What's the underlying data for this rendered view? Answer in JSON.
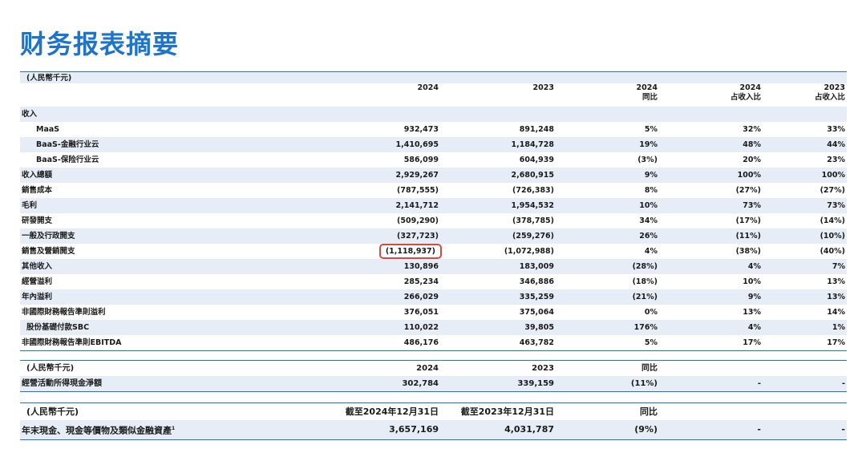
{
  "title": "财务报表摘要",
  "main": {
    "unit": "(人民幣千元)",
    "headers": [
      "",
      "2024",
      "2023",
      "2024",
      "2024",
      "2023"
    ],
    "subheaders": [
      "",
      "",
      "",
      "同比",
      "占收入比",
      "占收入比"
    ],
    "section": "收入",
    "rows": [
      [
        "MaaS",
        "932,473",
        "891,248",
        "5%",
        "32%",
        "33%"
      ],
      [
        "BaaS-金融行业云",
        "1,410,695",
        "1,184,728",
        "19%",
        "48%",
        "44%"
      ],
      [
        "BaaS-保险行业云",
        "586,099",
        "604,939",
        "(3%)",
        "20%",
        "23%"
      ],
      [
        "收入總額",
        "2,929,267",
        "2,680,915",
        "9%",
        "100%",
        "100%"
      ],
      [
        "銷售成本",
        "(787,555)",
        "(726,383)",
        "8%",
        "(27%)",
        "(27%)"
      ],
      [
        "毛利",
        "2,141,712",
        "1,954,532",
        "10%",
        "73%",
        "73%"
      ],
      [
        "研發開支",
        "(509,290)",
        "(378,785)",
        "34%",
        "(17%)",
        "(14%)"
      ],
      [
        "一般及行政開支",
        "(327,723)",
        "(259,276)",
        "26%",
        "(11%)",
        "(10%)"
      ],
      [
        "銷售及營銷開支",
        "(1,118,937)",
        "(1,072,988)",
        "4%",
        "(38%)",
        "(40%)"
      ],
      [
        "其他收入",
        "130,896",
        "183,009",
        "(28%)",
        "4%",
        "7%"
      ],
      [
        "經營溢利",
        "285,234",
        "346,886",
        "(18%)",
        "10%",
        "13%"
      ],
      [
        "年內溢利",
        "266,029",
        "335,259",
        "(21%)",
        "9%",
        "13%"
      ],
      [
        "非國際財務報告準則溢利",
        "376,051",
        "375,064",
        "0%",
        "13%",
        "14%"
      ],
      [
        "股份基礎付款SBC",
        "110,022",
        "39,805",
        "176%",
        "4%",
        "1%"
      ],
      [
        "非國際財務報告準則EBITDA",
        "486,176",
        "463,782",
        "5%",
        "17%",
        "17%"
      ]
    ]
  },
  "cash": {
    "headers": [
      "(人民幣千元)",
      "2024",
      "2023",
      "同比",
      "",
      ""
    ],
    "row": [
      "經營活動所得現金淨額",
      "302,784",
      "339,159",
      "(11%)",
      "-",
      "-"
    ]
  },
  "year_end": {
    "headers": [
      "(人民幣千元)",
      "截至2024年12月31日",
      "截至2023年12月31日",
      "同比",
      "",
      ""
    ],
    "row": [
      "年末現金、現金等價物及類似金融資產",
      "3,657,169",
      "4,031,787",
      "(9%)",
      "-",
      "-"
    ],
    "footnote": "1"
  },
  "colors": {
    "accent": "#1f73c9",
    "shade": "#e6edf6",
    "highlight": "#d9493d"
  }
}
